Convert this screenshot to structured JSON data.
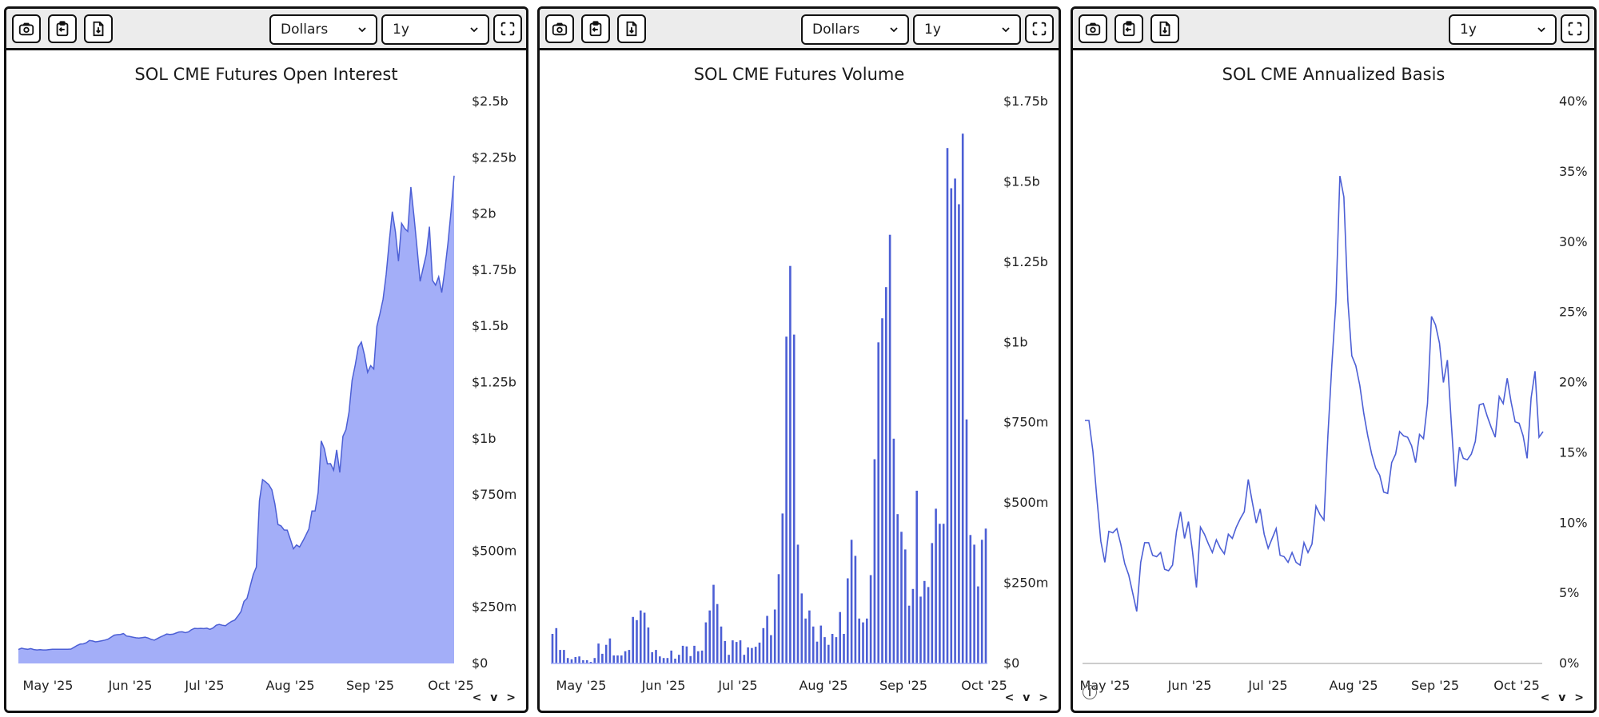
{
  "panels": [
    {
      "title": "SOL CME Futures Open Interest",
      "toolbar": {
        "buttons": [
          "camera-icon",
          "clipboard-copy-icon",
          "file-download-icon"
        ],
        "unit_select": "Dollars",
        "range_select": "1y",
        "fullscreen": "expand-icon"
      },
      "nav_label": "< v >"
    },
    {
      "title": "SOL CME Futures Volume",
      "toolbar": {
        "buttons": [
          "camera-icon",
          "clipboard-copy-icon",
          "file-download-icon"
        ],
        "unit_select": "Dollars",
        "range_select": "1y",
        "fullscreen": "expand-icon"
      },
      "nav_label": "< v >"
    },
    {
      "title": "SOL CME Annualized Basis",
      "toolbar": {
        "buttons": [
          "camera-icon",
          "clipboard-copy-icon",
          "file-download-icon"
        ],
        "range_select": "1y",
        "fullscreen": "expand-icon"
      },
      "nav_label": "< v >"
    }
  ],
  "colors": {
    "area_fill": "#a3aef8",
    "series_line": "#4c5fd5",
    "bar": "#4c5fd5",
    "zero_line": "#cccccc",
    "toolbar_bg": "#ececec",
    "border": "#111111"
  },
  "chart_data": [
    {
      "type": "area",
      "title": "SOL CME Futures Open Interest",
      "xlabel": "",
      "ylabel": "",
      "x_ticks": [
        "May '25",
        "Jun '25",
        "Jul '25",
        "Aug '25",
        "Sep '25",
        "Oct '25"
      ],
      "y_ticks": [
        "$0",
        "$250m",
        "$500m",
        "$750m",
        "$1b",
        "$1.25b",
        "$1.5b",
        "$1.75b",
        "$2b",
        "$2.25b",
        "$2.5b"
      ],
      "ylim": [
        0,
        2500
      ],
      "units": "USD millions",
      "grid": false,
      "legend": "none",
      "values": [
        62,
        68,
        65,
        63,
        66,
        62,
        60,
        61,
        60,
        60,
        62,
        63,
        63,
        63,
        63,
        63,
        63,
        64,
        72,
        80,
        86,
        87,
        92,
        102,
        100,
        96,
        98,
        101,
        104,
        108,
        117,
        126,
        128,
        129,
        133,
        122,
        120,
        117,
        114,
        113,
        115,
        117,
        113,
        107,
        104,
        111,
        118,
        124,
        131,
        129,
        130,
        135,
        140,
        141,
        137,
        140,
        150,
        156,
        155,
        156,
        155,
        157,
        152,
        158,
        170,
        174,
        170,
        168,
        178,
        187,
        193,
        210,
        230,
        276,
        290,
        343,
        396,
        428,
        724,
        818,
        808,
        796,
        773,
        710,
        618,
        612,
        594,
        593,
        553,
        510,
        527,
        518,
        543,
        570,
        598,
        678,
        678,
        760,
        990,
        955,
        888,
        889,
        860,
        950,
        850,
        1010,
        1040,
        1120,
        1260,
        1328,
        1408,
        1430,
        1372,
        1295,
        1325,
        1310,
        1500,
        1556,
        1620,
        1730,
        1875,
        2010,
        1920,
        1790,
        1958,
        1935,
        1922,
        2120,
        1990,
        1850,
        1700,
        1760,
        1820,
        1943,
        1705,
        1683,
        1720,
        1650,
        1750,
        1870,
        2010,
        2170
      ]
    },
    {
      "type": "bar",
      "title": "SOL CME Futures Volume",
      "xlabel": "",
      "ylabel": "",
      "x_ticks": [
        "May '25",
        "Jun '25",
        "Jul '25",
        "Aug '25",
        "Sep '25",
        "Oct '25"
      ],
      "y_ticks": [
        "$0",
        "$250m",
        "$500m",
        "$750m",
        "$1b",
        "$1.25b",
        "$1.5b",
        "$1.75b"
      ],
      "ylim": [
        0,
        1750
      ],
      "units": "USD millions",
      "grid": false,
      "legend": "none",
      "values": [
        92,
        110,
        42,
        42,
        17,
        13,
        20,
        22,
        10,
        10,
        5,
        17,
        62,
        30,
        58,
        78,
        25,
        25,
        25,
        38,
        42,
        145,
        135,
        165,
        158,
        112,
        35,
        42,
        22,
        17,
        17,
        40,
        15,
        27,
        55,
        53,
        23,
        55,
        38,
        40,
        128,
        165,
        245,
        185,
        115,
        70,
        27,
        72,
        67,
        72,
        27,
        50,
        48,
        52,
        65,
        110,
        148,
        88,
        168,
        278,
        467,
        1018,
        1238,
        1024,
        370,
        218,
        140,
        165,
        115,
        68,
        118,
        82,
        58,
        92,
        82,
        160,
        92,
        265,
        385,
        335,
        140,
        128,
        140,
        275,
        636,
        1000,
        1075,
        1172,
        1335,
        700,
        465,
        410,
        355,
        180,
        232,
        538,
        208,
        257,
        238,
        375,
        482,
        435,
        435,
        1605,
        1480,
        1510,
        1430,
        1650,
        760,
        400,
        370,
        240,
        385,
        420
      ]
    },
    {
      "type": "line",
      "title": "SOL CME Annualized Basis",
      "xlabel": "",
      "ylabel": "",
      "x_ticks": [
        "May '25",
        "Jun '25",
        "Jul '25",
        "Aug '25",
        "Sep '25",
        "Oct '25"
      ],
      "y_ticks": [
        "0%",
        "5%",
        "10%",
        "15%",
        "20%",
        "25%",
        "30%",
        "35%",
        "40%"
      ],
      "ylim": [
        0,
        40
      ],
      "units": "percent",
      "grid": false,
      "legend": "none",
      "values": [
        17.3,
        17.3,
        15.1,
        11.8,
        8.7,
        7.2,
        9.4,
        9.3,
        9.6,
        8.5,
        7.1,
        6.3,
        5.0,
        3.7,
        7.2,
        8.6,
        8.6,
        7.7,
        7.6,
        7.9,
        6.7,
        6.6,
        7.0,
        9.4,
        10.8,
        8.9,
        10.1,
        8.0,
        5.4,
        9.7,
        9.2,
        8.5,
        7.9,
        8.8,
        8.2,
        7.8,
        9.2,
        8.9,
        9.7,
        10.3,
        10.8,
        13.1,
        11.5,
        10.0,
        11.0,
        9.2,
        8.2,
        8.9,
        9.6,
        7.7,
        7.6,
        7.2,
        7.9,
        7.2,
        7.0,
        8.6,
        7.9,
        8.5,
        11.2,
        10.6,
        10.2,
        16.2,
        21.3,
        25.7,
        34.7,
        33.2,
        25.8,
        21.9,
        21.2,
        19.8,
        17.8,
        16.2,
        14.9,
        13.9,
        13.4,
        12.2,
        12.1,
        14.3,
        14.9,
        16.5,
        16.2,
        16.1,
        15.5,
        14.3,
        16.3,
        16.0,
        18.5,
        24.7,
        24.1,
        22.8,
        20.0,
        21.6,
        17.0,
        12.6,
        15.4,
        14.6,
        14.5,
        14.9,
        15.8,
        18.4,
        18.5,
        17.6,
        16.8,
        16.1,
        19.0,
        18.5,
        20.3,
        18.6,
        17.2,
        17.1,
        16.2,
        14.6,
        18.9,
        20.8,
        16.1,
        16.5
      ]
    }
  ]
}
